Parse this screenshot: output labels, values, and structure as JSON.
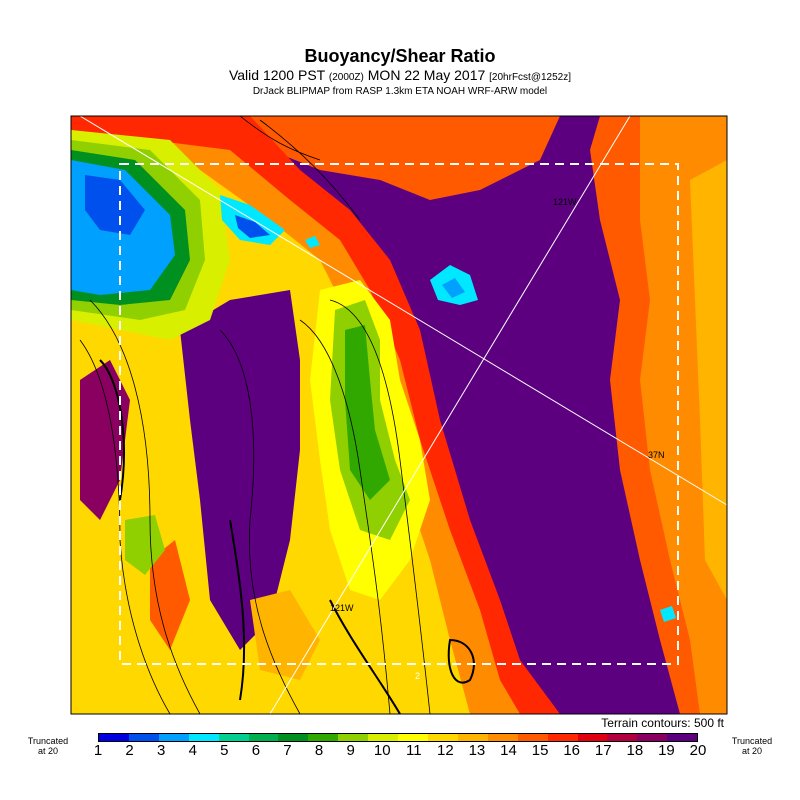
{
  "header": {
    "title": "Buoyancy/Shear Ratio",
    "subtitle_main": "Valid 1200 PST",
    "subtitle_z": "(2000Z)",
    "subtitle_date": "MON 22 May 2017",
    "subtitle_fcst": "[20hrFcst@1252z]",
    "model_line": "DrJack BLIPMAP from RASP 1.3km ETA NOAH WRF-ARW model"
  },
  "map": {
    "labels": {
      "lon_top": "121W",
      "lat_right": "37N",
      "lon_bottom": "121W",
      "contour_value": "2"
    }
  },
  "footer": {
    "terrain_note": "Terrain contours: 500 ft"
  },
  "legend": {
    "truncated_left": "Truncated\nat 20",
    "truncated_right": "Truncated\nat 20",
    "ticks": [
      "1",
      "2",
      "3",
      "4",
      "5",
      "6",
      "7",
      "8",
      "9",
      "10",
      "11",
      "12",
      "13",
      "14",
      "15",
      "16",
      "17",
      "18",
      "19",
      "20"
    ],
    "colors": [
      "#0000e0",
      "#0050ee",
      "#00a0ff",
      "#00e8ff",
      "#00d090",
      "#00b050",
      "#009020",
      "#30a800",
      "#90d000",
      "#d8f000",
      "#ffff00",
      "#ffd800",
      "#ffb400",
      "#ff8c00",
      "#ff5a00",
      "#ff2800",
      "#e00010",
      "#b00040",
      "#8a0060",
      "#5c0080"
    ]
  }
}
